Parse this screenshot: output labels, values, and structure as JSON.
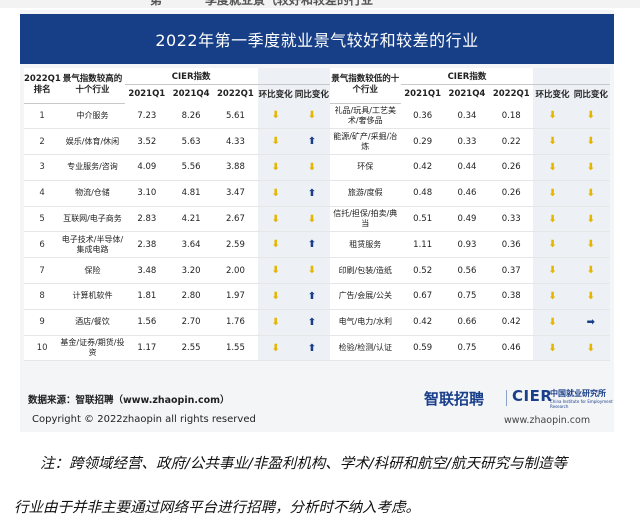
{
  "top_strip": {
    "text_a": "第",
    "text_b": "季度就业景气较好和较差的行业"
  },
  "banner_title": "2022年第一季度就业景气较好和较差的行业",
  "headers": {
    "rank": "2022Q1排名",
    "top_industry": "景气指数较高的十个行业",
    "bottom_industry": "景气指数较低的十个行业",
    "cier_index": "CIER指数",
    "col_2021q1": "2021Q1",
    "col_2021q4": "2021Q4",
    "col_2022q1": "2022Q1",
    "qoq": "环比变化",
    "yoy": "同比变化"
  },
  "rows": [
    {
      "rank": "1",
      "top_name": "中介服务",
      "top_2021q1": "7.23",
      "top_2021q4": "8.26",
      "top_2022q1": "5.61",
      "top_qoq": "down",
      "top_yoy": "down",
      "bottom_name": "礼品/玩具/工艺美术/奢侈品",
      "bottom_2021q1": "0.36",
      "bottom_2021q4": "0.34",
      "bottom_2022q1": "0.18",
      "bottom_qoq": "down",
      "bottom_yoy": "down"
    },
    {
      "rank": "2",
      "top_name": "娱乐/体育/休闲",
      "top_2021q1": "3.52",
      "top_2021q4": "5.63",
      "top_2022q1": "4.33",
      "top_qoq": "down",
      "top_yoy": "up",
      "bottom_name": "能源/矿产/采掘/冶炼",
      "bottom_2021q1": "0.29",
      "bottom_2021q4": "0.33",
      "bottom_2022q1": "0.22",
      "bottom_qoq": "down",
      "bottom_yoy": "down"
    },
    {
      "rank": "3",
      "top_name": "专业服务/咨询",
      "top_2021q1": "4.09",
      "top_2021q4": "5.56",
      "top_2022q1": "3.88",
      "top_qoq": "down",
      "top_yoy": "down",
      "bottom_name": "环保",
      "bottom_2021q1": "0.42",
      "bottom_2021q4": "0.44",
      "bottom_2022q1": "0.26",
      "bottom_qoq": "down",
      "bottom_yoy": "down"
    },
    {
      "rank": "4",
      "top_name": "物流/仓储",
      "top_2021q1": "3.10",
      "top_2021q4": "4.81",
      "top_2022q1": "3.47",
      "top_qoq": "down",
      "top_yoy": "up",
      "bottom_name": "旅游/度假",
      "bottom_2021q1": "0.48",
      "bottom_2021q4": "0.46",
      "bottom_2022q1": "0.26",
      "bottom_qoq": "down",
      "bottom_yoy": "down"
    },
    {
      "rank": "5",
      "top_name": "互联网/电子商务",
      "top_2021q1": "2.83",
      "top_2021q4": "4.21",
      "top_2022q1": "2.67",
      "top_qoq": "down",
      "top_yoy": "down",
      "bottom_name": "信托/担保/拍卖/典当",
      "bottom_2021q1": "0.51",
      "bottom_2021q4": "0.49",
      "bottom_2022q1": "0.33",
      "bottom_qoq": "down",
      "bottom_yoy": "down"
    },
    {
      "rank": "6",
      "top_name": "电子技术/半导体/集成电路",
      "top_2021q1": "2.38",
      "top_2021q4": "3.64",
      "top_2022q1": "2.59",
      "top_qoq": "down",
      "top_yoy": "up",
      "bottom_name": "租赁服务",
      "bottom_2021q1": "1.11",
      "bottom_2021q4": "0.93",
      "bottom_2022q1": "0.36",
      "bottom_qoq": "down",
      "bottom_yoy": "down"
    },
    {
      "rank": "7",
      "top_name": "保险",
      "top_2021q1": "3.48",
      "top_2021q4": "3.20",
      "top_2022q1": "2.00",
      "top_qoq": "down",
      "top_yoy": "down",
      "bottom_name": "印刷/包装/造纸",
      "bottom_2021q1": "0.52",
      "bottom_2021q4": "0.56",
      "bottom_2022q1": "0.37",
      "bottom_qoq": "down",
      "bottom_yoy": "down"
    },
    {
      "rank": "8",
      "top_name": "计算机软件",
      "top_2021q1": "1.81",
      "top_2021q4": "2.80",
      "top_2022q1": "1.97",
      "top_qoq": "down",
      "top_yoy": "up",
      "bottom_name": "广告/会展/公关",
      "bottom_2021q1": "0.67",
      "bottom_2021q4": "0.75",
      "bottom_2022q1": "0.38",
      "bottom_qoq": "down",
      "bottom_yoy": "down"
    },
    {
      "rank": "9",
      "top_name": "酒店/餐饮",
      "top_2021q1": "1.56",
      "top_2021q4": "2.70",
      "top_2022q1": "1.76",
      "top_qoq": "down",
      "top_yoy": "up",
      "bottom_name": "电气/电力/水利",
      "bottom_2021q1": "0.42",
      "bottom_2021q4": "0.66",
      "bottom_2022q1": "0.42",
      "bottom_qoq": "down",
      "bottom_yoy": "right"
    },
    {
      "rank": "10",
      "top_name": "基金/证券/期货/投资",
      "top_2021q1": "1.17",
      "top_2021q4": "2.55",
      "top_2022q1": "1.55",
      "top_qoq": "down",
      "top_yoy": "up",
      "bottom_name": "检验/检测/认证",
      "bottom_2021q1": "0.59",
      "bottom_2021q4": "0.75",
      "bottom_2022q1": "0.46",
      "bottom_qoq": "down",
      "bottom_yoy": "down"
    }
  ],
  "arrow_glyphs": {
    "down": "⬇",
    "up": "⬆",
    "right": "➡"
  },
  "arrow_colors": {
    "down": "#e5b500",
    "up": "#1a3f8a",
    "right": "#1a3f8a"
  },
  "source_text": "数据来源：智联招聘（www.zhaopin.com）",
  "logo_zhilian": "智联招聘",
  "logo_cier": "CIER",
  "logo_cier_cn": "中国就业研究所",
  "logo_cier_en": "China Institute for Employment Research",
  "copyright": "Copyright © 2022zhaopin all rights reserved",
  "website": "www.zhaopin.com",
  "note_line1": "注：跨领域经营、政府/公共事业/非盈利机构、学术/科研和航空/航天研究与制造等",
  "note_line2": "行业由于并非主要通过网络平台进行招聘，分析时不纳入考虑。"
}
